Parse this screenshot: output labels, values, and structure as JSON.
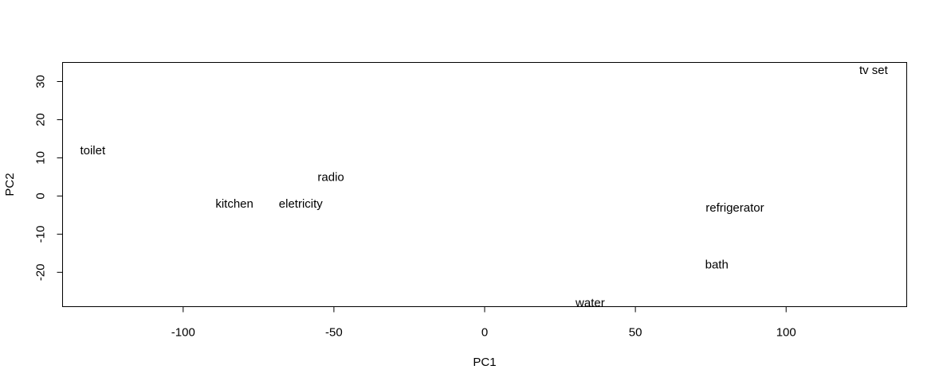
{
  "chart_data": {
    "type": "scatter",
    "title": "",
    "xlabel": "PC1",
    "ylabel": "PC2",
    "xlim": [
      -140,
      140
    ],
    "ylim": [
      -29,
      35
    ],
    "xticks": [
      -100,
      -50,
      0,
      50,
      100
    ],
    "yticks": [
      -20,
      -10,
      0,
      10,
      20,
      30
    ],
    "grid": false,
    "points": [
      {
        "label": "tv set",
        "x": 129,
        "y": 33
      },
      {
        "label": "toilet",
        "x": -130,
        "y": 12
      },
      {
        "label": "radio",
        "x": -51,
        "y": 5
      },
      {
        "label": "kitchen",
        "x": -83,
        "y": -2
      },
      {
        "label": "eletricity",
        "x": -61,
        "y": -2
      },
      {
        "label": "refrigerator",
        "x": 83,
        "y": -3
      },
      {
        "label": "bath",
        "x": 77,
        "y": -18
      },
      {
        "label": "water",
        "x": 35,
        "y": -28
      }
    ]
  }
}
